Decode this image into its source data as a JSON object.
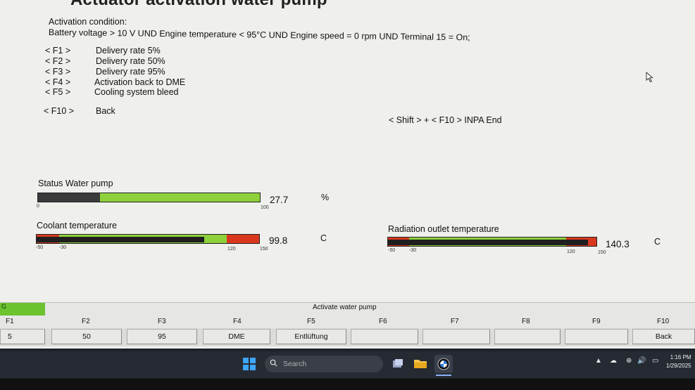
{
  "header": {
    "title": "Actuator activation water pump"
  },
  "condition": {
    "label": "Activation condition:",
    "text": "Battery voltage > 10 V UND Engine temperature < 95°C UND Engine speed = 0 rpm UND Terminal 15 = On;"
  },
  "menu": [
    {
      "key": "< F1 >",
      "desc": "Delivery rate 5%"
    },
    {
      "key": "< F2 >",
      "desc": "Delivery rate 50%"
    },
    {
      "key": "< F3 >",
      "desc": "Delivery rate 95%"
    },
    {
      "key": "< F4 >",
      "desc": "Activation back to DME"
    },
    {
      "key": "< F5 >",
      "desc": "Cooling system bleed"
    },
    {
      "key": "< F10 >",
      "desc": "Back"
    }
  ],
  "shift_end": "< Shift > + < F10 > INPA End",
  "gauges": {
    "water_pump": {
      "label": "Status Water pump",
      "value": "27.7",
      "unit": "%",
      "min": "0",
      "max": "100",
      "level": 27.7
    },
    "coolant": {
      "label": "Coolant temperature",
      "value": "99.8",
      "unit": "C",
      "ticks": [
        "-50",
        "-30",
        "120",
        "150"
      ],
      "level": 99.8
    },
    "radiator": {
      "label": "Radiation outlet temperature",
      "value": "140.3",
      "unit": "C",
      "ticks": [
        "-50",
        "-30",
        "120",
        "150"
      ],
      "level": 140.3
    }
  },
  "fbar": {
    "group_tab": "G",
    "title": "Activate water pump",
    "keys": [
      "F1",
      "F2",
      "F3",
      "F4",
      "F5",
      "F6",
      "F7",
      "F8",
      "F9",
      "F10"
    ],
    "buttons": [
      "5",
      "50",
      "95",
      "DME",
      "Entlüftung",
      "",
      "",
      "",
      "",
      "Back"
    ]
  },
  "taskbar": {
    "search_placeholder": "Search",
    "time": "1:16 PM",
    "date": "1/29/2025"
  },
  "colors": {
    "green": "#8ed13a",
    "red": "#d9381e",
    "dark": "#1f1f1f"
  }
}
